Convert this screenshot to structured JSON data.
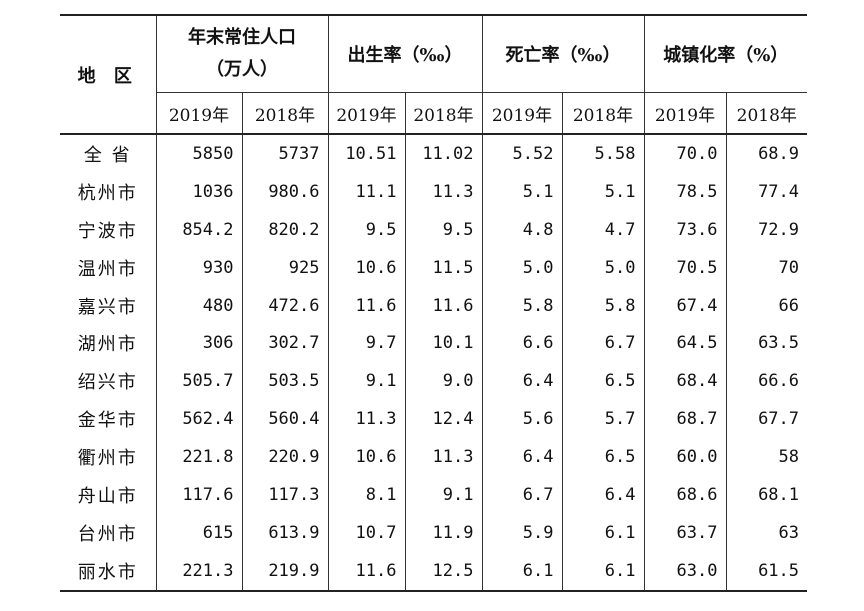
{
  "table": {
    "header": {
      "region": "地 区",
      "population_line1": "年末常住人口",
      "population_line2": "（万人）",
      "birth_rate": "出生率（‰）",
      "death_rate": "死亡率（‰）",
      "urbanization": "城镇化率（%）",
      "years": [
        "2019年",
        "2018年",
        "2019年",
        "2018年",
        "2019年",
        "2018年",
        "2019年",
        "2018年"
      ]
    },
    "rows": [
      {
        "region": "全 省",
        "values": [
          "5850",
          "5737",
          "10.51",
          "11.02",
          "5.52",
          "5.58",
          "70.0",
          "68.9"
        ]
      },
      {
        "region": "杭州市",
        "values": [
          "1036",
          "980.6",
          "11.1",
          "11.3",
          "5.1",
          "5.1",
          "78.5",
          "77.4"
        ]
      },
      {
        "region": "宁波市",
        "values": [
          "854.2",
          "820.2",
          "9.5",
          "9.5",
          "4.8",
          "4.7",
          "73.6",
          "72.9"
        ]
      },
      {
        "region": "温州市",
        "values": [
          "930",
          "925",
          "10.6",
          "11.5",
          "5.0",
          "5.0",
          "70.5",
          "70"
        ]
      },
      {
        "region": "嘉兴市",
        "values": [
          "480",
          "472.6",
          "11.6",
          "11.6",
          "5.8",
          "5.8",
          "67.4",
          "66"
        ]
      },
      {
        "region": "湖州市",
        "values": [
          "306",
          "302.7",
          "9.7",
          "10.1",
          "6.6",
          "6.7",
          "64.5",
          "63.5"
        ]
      },
      {
        "region": "绍兴市",
        "values": [
          "505.7",
          "503.5",
          "9.1",
          "9.0",
          "6.4",
          "6.5",
          "68.4",
          "66.6"
        ]
      },
      {
        "region": "金华市",
        "values": [
          "562.4",
          "560.4",
          "11.3",
          "12.4",
          "5.6",
          "5.7",
          "68.7",
          "67.7"
        ]
      },
      {
        "region": "衢州市",
        "values": [
          "221.8",
          "220.9",
          "10.6",
          "11.3",
          "6.4",
          "6.5",
          "60.0",
          "58"
        ]
      },
      {
        "region": "舟山市",
        "values": [
          "117.6",
          "117.3",
          "8.1",
          "9.1",
          "6.7",
          "6.4",
          "68.6",
          "68.1"
        ]
      },
      {
        "region": "台州市",
        "values": [
          "615",
          "613.9",
          "10.7",
          "11.9",
          "5.9",
          "6.1",
          "63.7",
          "63"
        ]
      },
      {
        "region": "丽水市",
        "values": [
          "221.3",
          "219.9",
          "11.6",
          "12.5",
          "6.1",
          "6.1",
          "63.0",
          "61.5"
        ]
      }
    ]
  }
}
